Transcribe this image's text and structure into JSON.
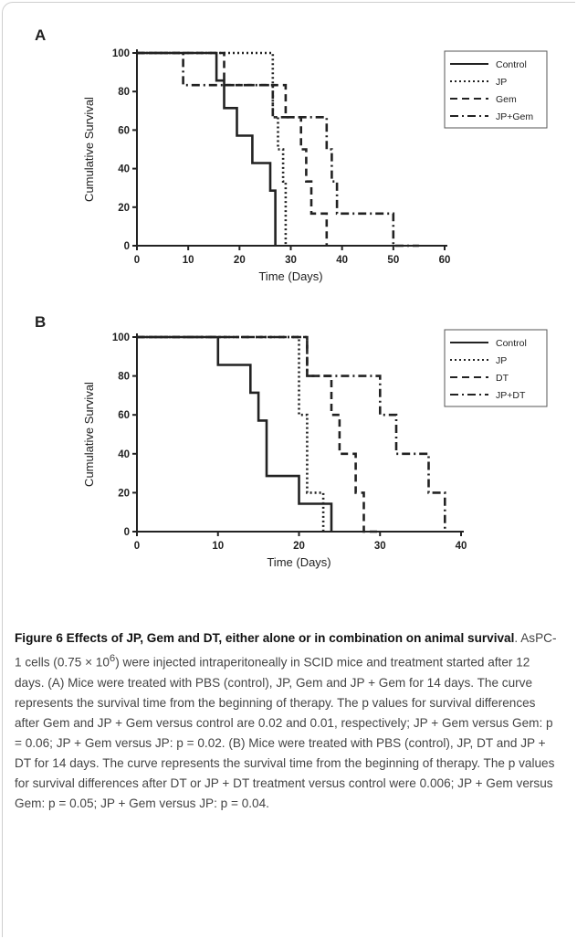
{
  "chart_data": [
    {
      "type": "line",
      "panel_label": "A",
      "xlabel": "Time (Days)",
      "ylabel": "Cumulative Survival",
      "xlim": [
        0,
        60
      ],
      "ylim": [
        0,
        100
      ],
      "xticks": [
        0,
        10,
        20,
        30,
        40,
        50,
        60
      ],
      "yticks": [
        0,
        20,
        40,
        60,
        80,
        100
      ],
      "legend_position": "top-right",
      "series": [
        {
          "name": "Control",
          "style": "solid",
          "color": "#222222",
          "x": [
            0,
            15.5,
            15.5,
            17,
            17,
            19.5,
            19.5,
            22.5,
            22.5,
            26,
            26,
            27,
            27
          ],
          "y": [
            100,
            100,
            85.7,
            85.7,
            71.4,
            71.4,
            57.1,
            57.1,
            42.9,
            42.9,
            28.6,
            28.6,
            0
          ]
        },
        {
          "name": "JP",
          "style": "dotted",
          "color": "#222222",
          "x": [
            0,
            26.5,
            26.5,
            27.5,
            27.5,
            28.5,
            28.5,
            29,
            29
          ],
          "y": [
            100,
            100,
            66.7,
            66.7,
            50,
            50,
            33.3,
            33.3,
            0
          ]
        },
        {
          "name": "Gem",
          "style": "dashed",
          "color": "#222222",
          "x": [
            0,
            17,
            17,
            29,
            29,
            32,
            32,
            33,
            33,
            34,
            34,
            37,
            37
          ],
          "y": [
            100,
            100,
            83.3,
            83.3,
            66.7,
            66.7,
            50,
            50,
            33.3,
            33.3,
            16.7,
            16.7,
            0
          ]
        },
        {
          "name": "JP+Gem",
          "style": "dashdot",
          "color": "#222222",
          "x": [
            0,
            9,
            9,
            26.5,
            26.5,
            37,
            37,
            38,
            38,
            39,
            39,
            50,
            50,
            55,
            55
          ],
          "y": [
            100,
            100,
            83.3,
            83.3,
            66.7,
            66.7,
            50,
            50,
            33.3,
            33.3,
            16.7,
            16.7,
            0,
            0,
            0
          ]
        }
      ]
    },
    {
      "type": "line",
      "panel_label": "B",
      "xlabel": "Time (Days)",
      "ylabel": "Cumulative Survival",
      "xlim": [
        0,
        40
      ],
      "ylim": [
        0,
        100
      ],
      "xticks": [
        0,
        10,
        20,
        30,
        40
      ],
      "yticks": [
        0,
        20,
        40,
        60,
        80,
        100
      ],
      "legend_position": "top-right",
      "series": [
        {
          "name": "Control",
          "style": "solid",
          "color": "#222222",
          "x": [
            0,
            10,
            10,
            14,
            14,
            15,
            15,
            16,
            16,
            20,
            20,
            24,
            24
          ],
          "y": [
            100,
            100,
            85.7,
            85.7,
            71.4,
            71.4,
            57.1,
            57.1,
            28.6,
            28.6,
            14.3,
            14.3,
            0
          ]
        },
        {
          "name": "JP",
          "style": "dotted",
          "color": "#222222",
          "x": [
            0,
            20,
            20,
            21,
            21,
            23,
            23
          ],
          "y": [
            100,
            100,
            60,
            60,
            20,
            20,
            0
          ]
        },
        {
          "name": "DT",
          "style": "dashed",
          "color": "#222222",
          "x": [
            0,
            21,
            21,
            24,
            24,
            25,
            25,
            27,
            27,
            28,
            28,
            30,
            30
          ],
          "y": [
            100,
            100,
            80,
            80,
            60,
            60,
            40,
            40,
            20,
            20,
            0,
            0,
            0
          ]
        },
        {
          "name": "JP+DT",
          "style": "dashdot",
          "color": "#222222",
          "x": [
            0,
            21,
            21,
            30,
            30,
            32,
            32,
            36,
            36,
            38,
            38
          ],
          "y": [
            100,
            100,
            80,
            80,
            60,
            60,
            40,
            40,
            20,
            20,
            0
          ]
        }
      ]
    }
  ],
  "caption": {
    "heading": "Figure 6 Effects of JP, Gem and DT, either alone or in combination on animal survival",
    "body_before_sup": ". AsPC-1 cells (0.75 × 10",
    "superscript": "6",
    "body_after_sup": ") were injected intraperitoneally in SCID mice and treatment started after 12 days. (A) Mice were treated with PBS (control), JP, Gem and JP + Gem for 14 days. The curve represents the survival time from the beginning of therapy. The p values for survival differences after Gem and JP + Gem versus control are 0.02 and 0.01, respectively; JP + Gem versus Gem: p = 0.06; JP + Gem versus JP: p = 0.02. (B) Mice were treated with PBS (control), JP, DT and JP + DT for 14 days. The curve represents the survival time from the beginning of therapy. The p values for survival differences after DT or JP + DT treatment versus control were 0.006; JP + Gem versus Gem: p = 0.05; JP + Gem versus JP: p = 0.04."
  }
}
